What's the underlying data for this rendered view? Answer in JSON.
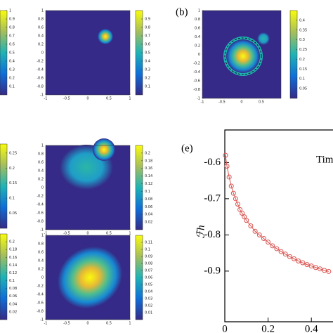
{
  "chart_data": [
    {
      "type": "colorbar",
      "ylim": [
        0,
        1
      ],
      "yticks": [
        1,
        0.9,
        0.8,
        0.7,
        0.6,
        0.5,
        0.4,
        0.3,
        0.2,
        0.1
      ]
    },
    {
      "type": "heatmap",
      "xlim": [
        -1,
        1
      ],
      "ylim": [
        -1,
        1
      ],
      "xticks": [
        -1,
        -0.5,
        0,
        0.5,
        1
      ],
      "yticks": [
        1,
        0.8,
        0.6,
        0.4,
        0.2,
        0,
        -0.2,
        -0.4,
        -0.6,
        -0.8,
        -1
      ]
    },
    {
      "type": "colorbar",
      "ylim": [
        0,
        1
      ],
      "yticks": [
        0.9,
        0.8,
        0.7,
        0.6,
        0.5,
        0.4,
        0.3,
        0.2,
        0.1
      ]
    },
    {
      "type": "colorbar",
      "ylim": [
        0,
        0.28
      ],
      "yticks": [
        0.25,
        0.2,
        0.15,
        0.1,
        0.05
      ]
    },
    {
      "type": "heatmap",
      "xlim": [
        -1,
        1
      ],
      "ylim": [
        -1,
        1
      ],
      "xticks": [
        -1,
        -0.5,
        0,
        0.5,
        1
      ],
      "yticks": [
        1,
        0.8,
        0.6,
        0.4,
        0.2,
        0,
        -0.2,
        -0.4,
        -0.6,
        -0.8,
        -1
      ]
    },
    {
      "type": "colorbar",
      "ylim": [
        0,
        0.22
      ],
      "yticks": [
        0.2,
        0.18,
        0.16,
        0.14,
        0.12,
        0.1,
        0.08,
        0.06,
        0.04,
        0.02
      ]
    },
    {
      "type": "colorbar",
      "ylim": [
        0,
        0.22
      ],
      "yticks": [
        0.2,
        0.18,
        0.16,
        0.14,
        0.12,
        0.1,
        0.08,
        0.06,
        0.04,
        0.02
      ]
    },
    {
      "type": "heatmap",
      "xlim": [
        -1,
        1
      ],
      "ylim": [
        -1,
        1
      ],
      "xticks": [
        -1,
        -0.5,
        0,
        0.5,
        1
      ],
      "yticks": [
        1,
        0.8,
        0.6,
        0.4,
        0.2,
        0,
        -0.2,
        -0.4,
        -0.6,
        -0.8,
        -1
      ]
    },
    {
      "type": "colorbar",
      "ylim": [
        0,
        0.12
      ],
      "yticks": [
        0.11,
        0.1,
        0.09,
        0.08,
        0.07,
        0.06,
        0.05,
        0.04,
        0.03,
        0.02,
        0.01
      ]
    },
    {
      "type": "heatmap",
      "label": "(b)",
      "xlim": [
        -1,
        1
      ],
      "ylim": [
        -1,
        1
      ],
      "xticks": [
        -1,
        -0.5,
        0,
        0.5
      ],
      "yticks": [
        1,
        0.8,
        0.6,
        0.4,
        0.2,
        0,
        -0.2,
        -0.4,
        -0.6,
        -0.8,
        -1
      ]
    },
    {
      "type": "colorbar",
      "ylim": [
        0,
        0.45
      ],
      "yticks": [
        0.4,
        0.35,
        0.3,
        0.25,
        0.2,
        0.15,
        0.1,
        0.05
      ]
    },
    {
      "type": "line",
      "label": "(e)",
      "x_label": "Tim",
      "y_label": "ℱh",
      "xlim": [
        0,
        0.5
      ],
      "ylim": [
        -1.04,
        -0.51
      ],
      "xticks": [
        0,
        0.2,
        0.4
      ],
      "yticks": [
        -0.6,
        -0.7,
        -0.8,
        -0.9
      ],
      "x": [
        0.003,
        0.01,
        0.02,
        0.03,
        0.04,
        0.05,
        0.06,
        0.07,
        0.08,
        0.09,
        0.1,
        0.12,
        0.14,
        0.16,
        0.18,
        0.2,
        0.22,
        0.24,
        0.26,
        0.28,
        0.3,
        0.32,
        0.34,
        0.36,
        0.38,
        0.4,
        0.42,
        0.44,
        0.46,
        0.48
      ],
      "series": [
        {
          "color": "#d9534f",
          "values": [
            -0.58,
            -0.61,
            -0.64,
            -0.665,
            -0.685,
            -0.7,
            -0.715,
            -0.73,
            -0.74,
            -0.75,
            -0.76,
            -0.775,
            -0.79,
            -0.8,
            -0.81,
            -0.82,
            -0.83,
            -0.838,
            -0.846,
            -0.853,
            -0.86,
            -0.866,
            -0.872,
            -0.877,
            -0.882,
            -0.886,
            -0.89,
            -0.894,
            -0.898,
            -0.901
          ]
        }
      ]
    }
  ]
}
